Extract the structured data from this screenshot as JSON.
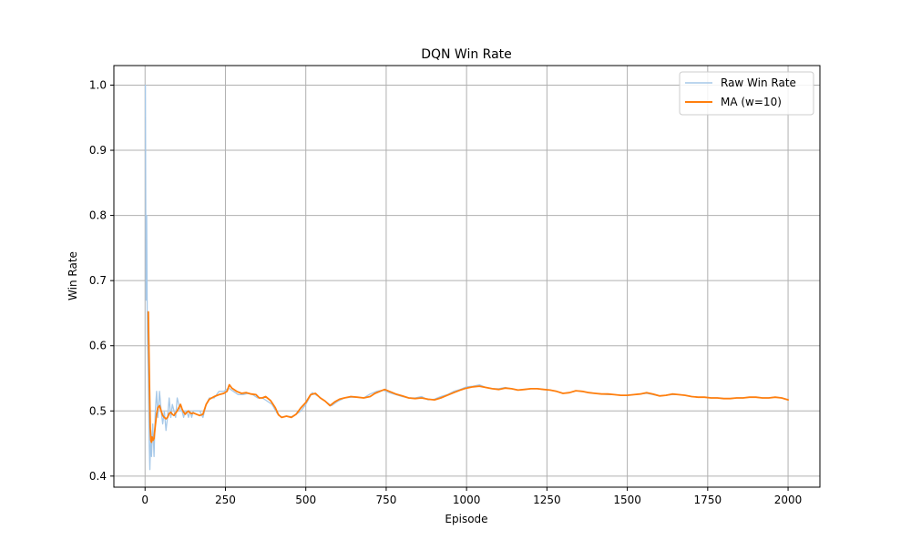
{
  "chart_data": {
    "type": "line",
    "title": "DQN Win Rate",
    "xlabel": "Episode",
    "ylabel": "Win Rate",
    "xlim": [
      -97,
      2099
    ],
    "ylim": [
      0.383,
      1.03
    ],
    "xticks": [
      0,
      250,
      500,
      750,
      1000,
      1250,
      1500,
      1750,
      2000
    ],
    "xtick_labels": [
      "0",
      "250",
      "500",
      "750",
      "1000",
      "1250",
      "1500",
      "1750",
      "2000"
    ],
    "yticks": [
      0.4,
      0.5,
      0.6,
      0.7,
      0.8,
      0.9,
      1.0
    ],
    "ytick_labels": [
      "0.4",
      "0.5",
      "0.6",
      "0.7",
      "0.8",
      "0.9",
      "1.0"
    ],
    "grid": true,
    "legend_position": "top-right",
    "series": [
      {
        "name": "Raw Win Rate",
        "color": "#a6c8e8",
        "x": [
          1,
          3,
          5,
          7,
          10,
          13,
          15,
          18,
          20,
          24,
          28,
          32,
          36,
          40,
          45,
          50,
          55,
          60,
          65,
          70,
          75,
          80,
          85,
          90,
          95,
          100,
          105,
          110,
          115,
          120,
          125,
          130,
          135,
          140,
          145,
          150,
          160,
          170,
          180,
          190,
          200,
          215,
          230,
          245,
          260,
          275,
          290,
          305,
          320,
          335,
          350,
          365,
          380,
          395,
          410,
          425,
          440,
          455,
          470,
          485,
          500,
          520,
          540,
          560,
          580,
          600,
          620,
          640,
          660,
          680,
          700,
          720,
          740,
          760,
          780,
          800,
          820,
          840,
          860,
          880,
          900,
          920,
          940,
          960,
          980,
          1000,
          1020,
          1040,
          1060,
          1080,
          1100,
          1120,
          1140,
          1160,
          1180,
          1200,
          1220,
          1240,
          1260,
          1280,
          1300,
          1320,
          1340,
          1360,
          1380,
          1400,
          1420,
          1440,
          1460,
          1480,
          1500,
          1520,
          1540,
          1560,
          1580,
          1600,
          1620,
          1640,
          1660,
          1680,
          1700,
          1720,
          1740,
          1760,
          1780,
          1800,
          1820,
          1840,
          1860,
          1880,
          1900,
          1920,
          1940,
          1960,
          1980,
          2000
        ],
        "y": [
          1.0,
          0.67,
          0.8,
          0.62,
          0.55,
          0.45,
          0.41,
          0.47,
          0.43,
          0.48,
          0.43,
          0.5,
          0.53,
          0.49,
          0.53,
          0.5,
          0.48,
          0.5,
          0.47,
          0.49,
          0.52,
          0.49,
          0.51,
          0.5,
          0.49,
          0.52,
          0.51,
          0.5,
          0.5,
          0.49,
          0.5,
          0.5,
          0.49,
          0.5,
          0.49,
          0.5,
          0.5,
          0.5,
          0.49,
          0.51,
          0.52,
          0.52,
          0.53,
          0.53,
          0.535,
          0.53,
          0.525,
          0.525,
          0.527,
          0.525,
          0.52,
          0.52,
          0.515,
          0.51,
          0.497,
          0.49,
          0.492,
          0.491,
          0.495,
          0.5,
          0.51,
          0.528,
          0.522,
          0.515,
          0.508,
          0.515,
          0.52,
          0.521,
          0.521,
          0.52,
          0.526,
          0.53,
          0.532,
          0.528,
          0.525,
          0.522,
          0.52,
          0.52,
          0.522,
          0.517,
          0.518,
          0.522,
          0.525,
          0.53,
          0.533,
          0.537,
          0.538,
          0.54,
          0.536,
          0.534,
          0.534,
          0.536,
          0.534,
          0.532,
          0.533,
          0.534,
          0.534,
          0.533,
          0.532,
          0.53,
          0.527,
          0.528,
          0.531,
          0.53,
          0.528,
          0.527,
          0.526,
          0.525,
          0.525,
          0.524,
          0.524,
          0.525,
          0.526,
          0.527,
          0.525,
          0.523,
          0.524,
          0.525,
          0.525,
          0.524,
          0.522,
          0.521,
          0.521,
          0.52,
          0.52,
          0.519,
          0.519,
          0.52,
          0.52,
          0.521,
          0.521,
          0.52,
          0.52,
          0.521,
          0.52,
          0.517
        ]
      },
      {
        "name": "MA (w=10)",
        "color": "#ff7f0e",
        "x": [
          10,
          12,
          14,
          16,
          18,
          20,
          22,
          25,
          28,
          32,
          36,
          40,
          45,
          50,
          55,
          60,
          65,
          70,
          75,
          80,
          85,
          90,
          95,
          100,
          105,
          110,
          115,
          120,
          125,
          130,
          135,
          140,
          145,
          150,
          160,
          170,
          180,
          190,
          200,
          215,
          230,
          245,
          255,
          262,
          270,
          285,
          300,
          315,
          330,
          345,
          355,
          365,
          375,
          390,
          405,
          415,
          425,
          440,
          455,
          470,
          485,
          500,
          515,
          530,
          545,
          560,
          575,
          590,
          605,
          620,
          640,
          660,
          680,
          700,
          715,
          730,
          745,
          760,
          780,
          800,
          820,
          840,
          860,
          880,
          900,
          920,
          940,
          960,
          980,
          1000,
          1020,
          1040,
          1060,
          1080,
          1100,
          1120,
          1140,
          1160,
          1180,
          1200,
          1220,
          1240,
          1260,
          1280,
          1300,
          1320,
          1340,
          1360,
          1380,
          1400,
          1420,
          1440,
          1460,
          1480,
          1500,
          1520,
          1540,
          1560,
          1580,
          1600,
          1620,
          1640,
          1660,
          1680,
          1700,
          1720,
          1740,
          1760,
          1780,
          1800,
          1820,
          1840,
          1860,
          1880,
          1900,
          1920,
          1940,
          1960,
          1980,
          2000
        ],
        "y": [
          0.652,
          0.59,
          0.53,
          0.475,
          0.455,
          0.452,
          0.46,
          0.455,
          0.458,
          0.478,
          0.495,
          0.505,
          0.508,
          0.5,
          0.493,
          0.49,
          0.488,
          0.49,
          0.496,
          0.498,
          0.495,
          0.493,
          0.497,
          0.5,
          0.505,
          0.51,
          0.503,
          0.498,
          0.495,
          0.498,
          0.5,
          0.497,
          0.496,
          0.497,
          0.495,
          0.493,
          0.495,
          0.51,
          0.518,
          0.522,
          0.525,
          0.527,
          0.53,
          0.54,
          0.535,
          0.53,
          0.527,
          0.528,
          0.526,
          0.525,
          0.52,
          0.52,
          0.522,
          0.516,
          0.505,
          0.494,
          0.49,
          0.492,
          0.49,
          0.495,
          0.505,
          0.513,
          0.525,
          0.527,
          0.52,
          0.515,
          0.508,
          0.514,
          0.518,
          0.52,
          0.522,
          0.521,
          0.52,
          0.522,
          0.527,
          0.53,
          0.533,
          0.53,
          0.526,
          0.523,
          0.52,
          0.519,
          0.52,
          0.518,
          0.517,
          0.52,
          0.524,
          0.528,
          0.532,
          0.535,
          0.537,
          0.538,
          0.536,
          0.534,
          0.533,
          0.535,
          0.534,
          0.532,
          0.533,
          0.534,
          0.534,
          0.533,
          0.532,
          0.53,
          0.527,
          0.528,
          0.531,
          0.53,
          0.528,
          0.527,
          0.526,
          0.526,
          0.525,
          0.524,
          0.524,
          0.525,
          0.526,
          0.528,
          0.526,
          0.523,
          0.524,
          0.526,
          0.525,
          0.524,
          0.522,
          0.521,
          0.521,
          0.52,
          0.52,
          0.519,
          0.519,
          0.52,
          0.52,
          0.521,
          0.521,
          0.52,
          0.52,
          0.521,
          0.52,
          0.517
        ]
      }
    ]
  }
}
